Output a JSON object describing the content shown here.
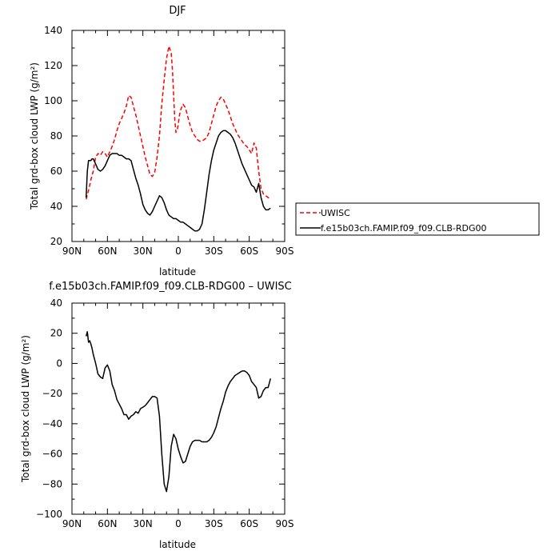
{
  "chart_data": [
    {
      "type": "line",
      "title": "DJF",
      "xlabel": "latitude",
      "ylabel": "Total grd-box cloud LWP (g/m²)",
      "xlim": [
        90,
        -90
      ],
      "ylim": [
        20,
        140
      ],
      "xticks": [
        90,
        60,
        30,
        0,
        -30,
        -60,
        -90
      ],
      "xtick_labels": [
        "90N",
        "60N",
        "30N",
        "0",
        "30S",
        "60S",
        "90S"
      ],
      "yticks": [
        20,
        40,
        60,
        80,
        100,
        120,
        140
      ],
      "ytick_labels": [
        "20",
        "40",
        "60",
        "80",
        "100",
        "120",
        "140"
      ],
      "grid": false,
      "legend_position": "right, outside plot",
      "series": [
        {
          "name": "UWISC",
          "color": "#ff0000",
          "style": "dashed",
          "x": [
            78,
            76,
            74,
            72,
            70,
            68,
            66,
            64,
            62,
            60,
            58,
            56,
            54,
            52,
            50,
            48,
            46,
            44,
            42,
            40,
            38,
            36,
            34,
            32,
            30,
            28,
            26,
            24,
            22,
            20,
            18,
            16,
            14,
            12,
            10,
            8,
            6,
            5,
            4,
            3,
            2,
            1,
            0,
            -1,
            -2,
            -4,
            -6,
            -8,
            -10,
            -12,
            -14,
            -16,
            -18,
            -20,
            -22,
            -24,
            -26,
            -28,
            -30,
            -32,
            -34,
            -36,
            -38,
            -40,
            -42,
            -44,
            -46,
            -48,
            -50,
            -52,
            -54,
            -56,
            -58,
            -60,
            -62,
            -64,
            -66,
            -68,
            -70,
            -72,
            -74,
            -76,
            -78
          ],
          "y": [
            44,
            49,
            55,
            60,
            68,
            70,
            69,
            71,
            70,
            68,
            71,
            74,
            78,
            83,
            87,
            90,
            93,
            97,
            103,
            102,
            97,
            92,
            86,
            80,
            74,
            68,
            63,
            58,
            57,
            59,
            68,
            80,
            98,
            112,
            124,
            131,
            127,
            118,
            103,
            89,
            82,
            83,
            87,
            92,
            95,
            98,
            96,
            91,
            86,
            82,
            80,
            78,
            77,
            77,
            78,
            79,
            82,
            87,
            92,
            97,
            100,
            102,
            101,
            98,
            95,
            91,
            87,
            84,
            81,
            79,
            77,
            75,
            74,
            72,
            70,
            76,
            73,
            60,
            50,
            47,
            46,
            45,
            44
          ]
        },
        {
          "name": "f.e15b03ch.FAMIP.f09_f09.CLB-RDG00",
          "color": "#000000",
          "style": "solid",
          "x": [
            78,
            77,
            76,
            75,
            74,
            73,
            72,
            70,
            68,
            66,
            64,
            62,
            60,
            58,
            56,
            54,
            52,
            50,
            48,
            46,
            44,
            42,
            40,
            38,
            36,
            34,
            32,
            30,
            28,
            26,
            24,
            22,
            20,
            18,
            16,
            14,
            12,
            10,
            8,
            6,
            4,
            2,
            0,
            -2,
            -4,
            -6,
            -8,
            -10,
            -12,
            -14,
            -16,
            -18,
            -20,
            -22,
            -24,
            -26,
            -28,
            -30,
            -32,
            -34,
            -36,
            -38,
            -40,
            -42,
            -44,
            -46,
            -48,
            -50,
            -52,
            -54,
            -56,
            -58,
            -60,
            -62,
            -64,
            -66,
            -68,
            -70,
            -72,
            -74,
            -76,
            -78
          ],
          "y": [
            45,
            60,
            66,
            66,
            66,
            67,
            67,
            64,
            61,
            60,
            61,
            63,
            66,
            69,
            70,
            70,
            70,
            69,
            69,
            68,
            67,
            67,
            66,
            61,
            56,
            52,
            47,
            41,
            38,
            36,
            35,
            37,
            40,
            43,
            46,
            45,
            42,
            38,
            35,
            34,
            33,
            33,
            32,
            31,
            31,
            30,
            29,
            28,
            27,
            26,
            26,
            27,
            30,
            38,
            48,
            58,
            66,
            72,
            76,
            80,
            82,
            83,
            83,
            82,
            81,
            79,
            76,
            72,
            68,
            64,
            61,
            58,
            55,
            52,
            51,
            48,
            53,
            45,
            40,
            38,
            38,
            39
          ]
        }
      ]
    },
    {
      "type": "line",
      "title": "f.e15b03ch.FAMIP.f09_f09.CLB-RDG00 – UWISC",
      "xlabel": "latitude",
      "ylabel": "Total grd-box cloud LWP (g/m²)",
      "xlim": [
        90,
        -90
      ],
      "ylim": [
        -100,
        40
      ],
      "xticks": [
        90,
        60,
        30,
        0,
        -30,
        -60,
        -90
      ],
      "xtick_labels": [
        "90N",
        "60N",
        "30N",
        "0",
        "30S",
        "60S",
        "90S"
      ],
      "yticks": [
        -100,
        -80,
        -60,
        -40,
        -20,
        0,
        20,
        40
      ],
      "ytick_labels": [
        "−100",
        "−80",
        "−60",
        "−40",
        "−20",
        "0",
        "20",
        "40"
      ],
      "grid": false,
      "series": [
        {
          "color": "#000000",
          "style": "solid",
          "x": [
            78,
            77,
            76,
            75,
            74,
            73,
            72,
            70,
            68,
            66,
            64,
            62,
            60,
            58,
            56,
            54,
            52,
            50,
            48,
            46,
            44,
            42,
            40,
            38,
            36,
            34,
            32,
            30,
            28,
            26,
            24,
            22,
            20,
            18,
            16,
            14,
            12,
            10,
            8,
            6,
            4,
            2,
            0,
            -2,
            -4,
            -6,
            -8,
            -10,
            -12,
            -14,
            -16,
            -18,
            -20,
            -22,
            -24,
            -26,
            -28,
            -30,
            -32,
            -34,
            -36,
            -38,
            -40,
            -42,
            -44,
            -46,
            -48,
            -50,
            -52,
            -54,
            -56,
            -58,
            -60,
            -62,
            -64,
            -66,
            -68,
            -70,
            -72,
            -74,
            -76,
            -78
          ],
          "y": [
            18,
            21,
            14,
            15,
            13,
            10,
            6,
            0,
            -7,
            -9,
            -10,
            -3,
            -1,
            -5,
            -14,
            -18,
            -24,
            -27,
            -30,
            -34,
            -34,
            -37,
            -35,
            -34,
            -32,
            -33,
            -30,
            -29,
            -28,
            -26,
            -24,
            -22,
            -22,
            -23,
            -35,
            -60,
            -80,
            -85,
            -75,
            -55,
            -47,
            -50,
            -57,
            -62,
            -66,
            -65,
            -60,
            -55,
            -52,
            -51,
            -51,
            -51,
            -52,
            -52,
            -52,
            -51,
            -49,
            -46,
            -42,
            -36,
            -30,
            -25,
            -19,
            -15,
            -12,
            -10,
            -8,
            -7,
            -6,
            -5,
            -5,
            -6,
            -8,
            -12,
            -14,
            -16,
            -23,
            -22,
            -18,
            -16,
            -16,
            -10
          ]
        }
      ]
    }
  ]
}
